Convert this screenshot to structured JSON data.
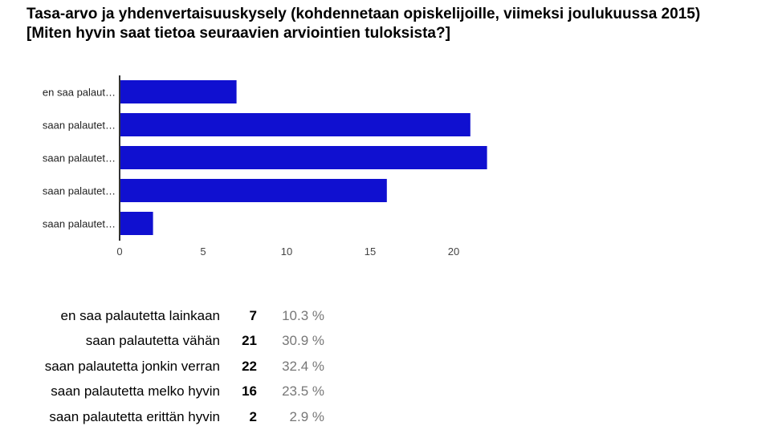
{
  "title": "Tasa-arvo ja yhdenvertaisuuskysely (kohdennetaan opiskelijoille, viimeksi joulukuussa 2015) [Miten hyvin saat tietoa seuraavien arviointien tuloksista?]",
  "chart_data": {
    "type": "bar",
    "orientation": "horizontal",
    "title": "Tasa-arvo ja yhdenvertaisuuskysely (kohdennetaan opiskelijoille, viimeksi joulukuussa 2015) [Miten hyvin saat tietoa seuraavien arviointien tuloksista?]",
    "categories": [
      "en saa palaut…",
      "saan palautet…",
      "saan palautet…",
      "saan palautet…",
      "saan palautet…"
    ],
    "values": [
      7,
      21,
      22,
      16,
      2
    ],
    "xticks": [
      "0",
      "5",
      "10",
      "15",
      "20"
    ],
    "xlim": [
      0,
      22
    ],
    "bar_color": "#1010d0",
    "grid": false,
    "legend": "none"
  },
  "table": {
    "rows": [
      {
        "label": "en saa palautetta lainkaan",
        "count": "7",
        "percent": "10.3 %"
      },
      {
        "label": "saan palautetta vähän",
        "count": "21",
        "percent": "30.9 %"
      },
      {
        "label": "saan palautetta jonkin verran",
        "count": "22",
        "percent": "32.4 %"
      },
      {
        "label": "saan palautetta melko hyvin",
        "count": "16",
        "percent": "23.5 %"
      },
      {
        "label": "saan palautetta erittän hyvin",
        "count": "2",
        "percent": "2.9 %"
      }
    ]
  }
}
